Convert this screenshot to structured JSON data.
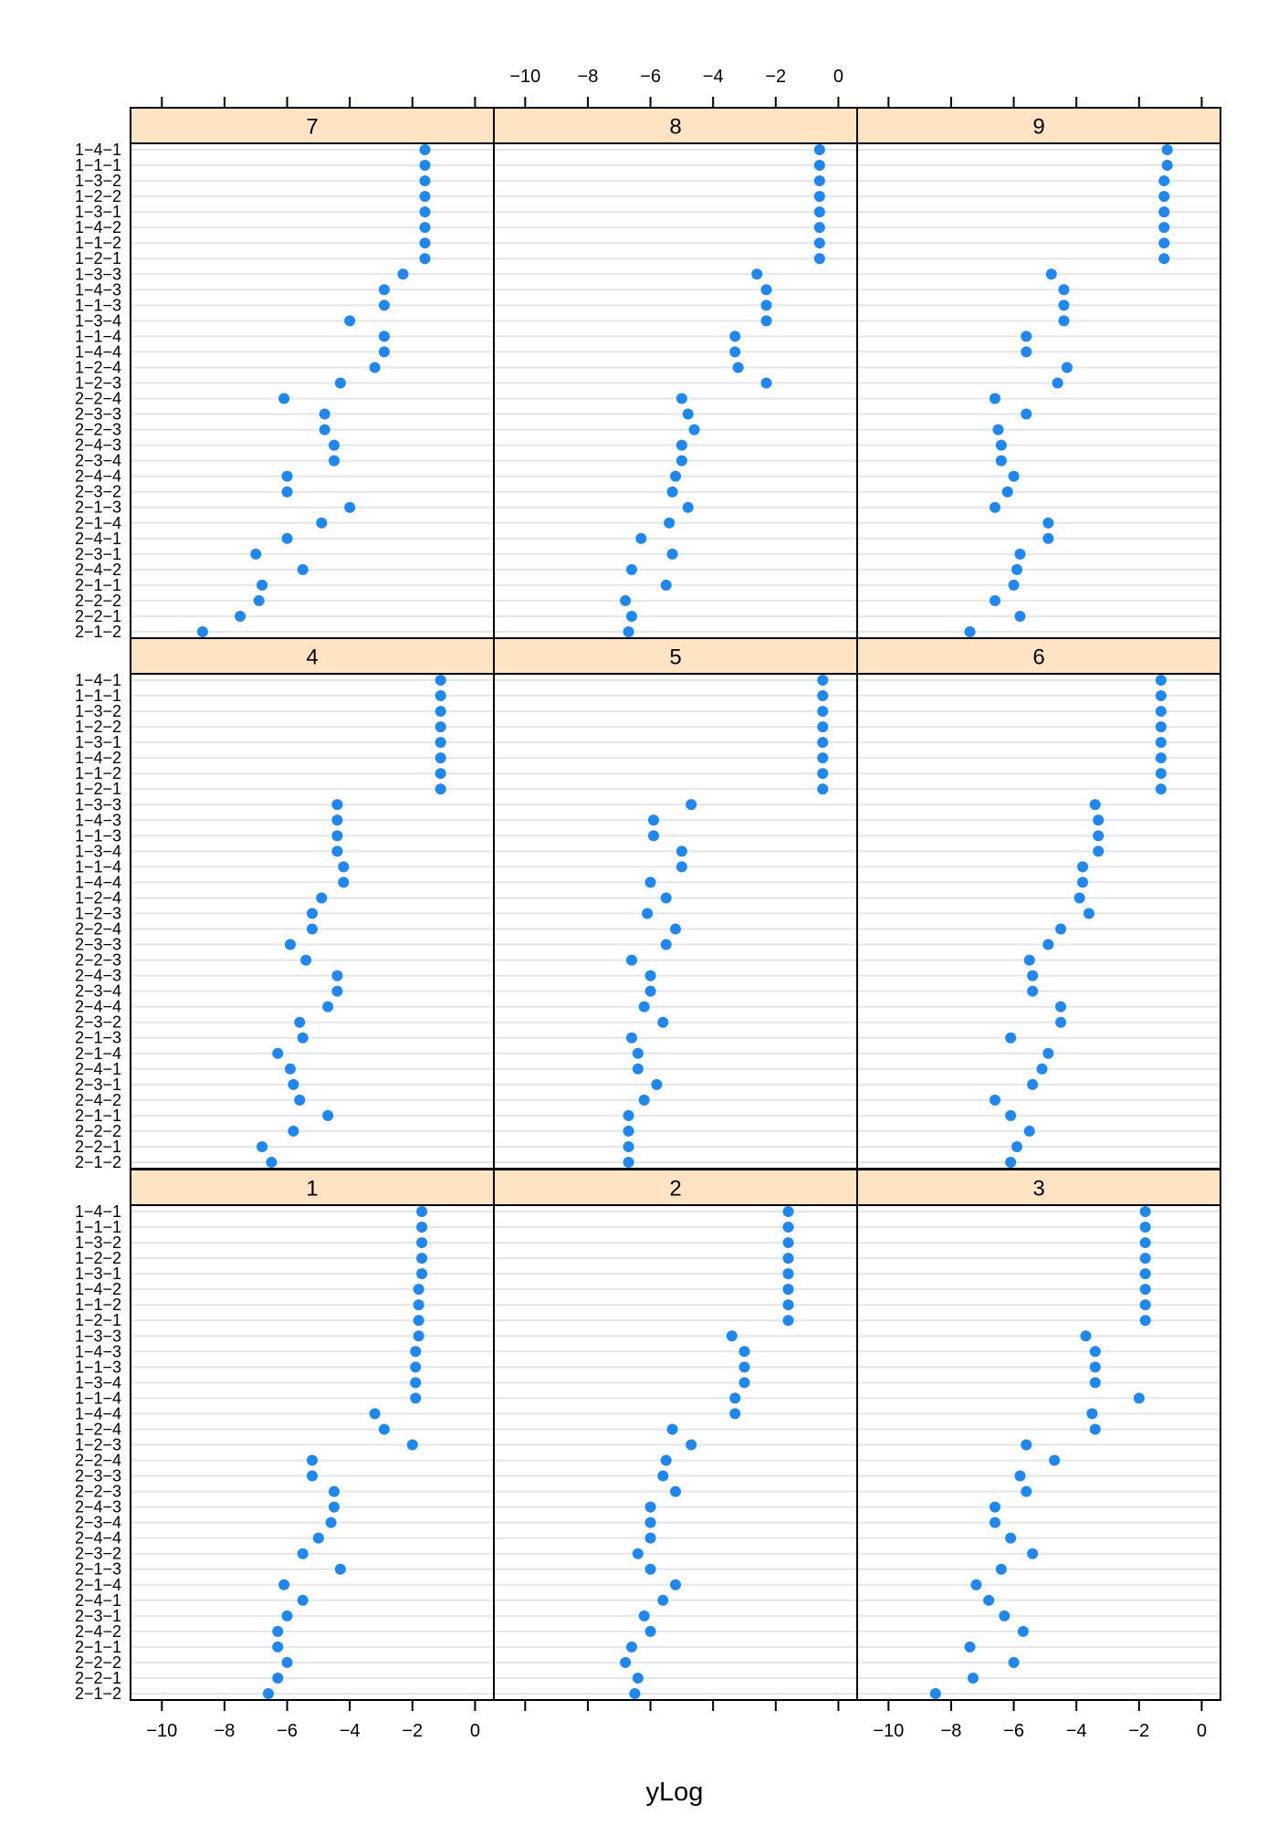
{
  "chart_data": {
    "type": "scatter",
    "xlabel": "yLog",
    "xlim": [
      -11,
      0.6
    ],
    "x_ticks": [
      -10,
      -8,
      -6,
      -4,
      -2,
      0
    ],
    "x_tick_labels": [
      "−10",
      "−8",
      "−6",
      "−4",
      "−2",
      "0"
    ],
    "row_labels": [
      "1−4−1",
      "1−1−1",
      "1−3−2",
      "1−2−2",
      "1−3−1",
      "1−4−2",
      "1−1−2",
      "1−2−1",
      "1−3−3",
      "1−4−3",
      "1−1−3",
      "1−3−4",
      "1−1−4",
      "1−4−4",
      "1−2−4",
      "1−2−3",
      "2−2−4",
      "2−3−3",
      "2−2−3",
      "2−4−3",
      "2−3−4",
      "2−4−4",
      "2−3−2",
      "2−1−3",
      "2−1−4",
      "2−4−1",
      "2−3−1",
      "2−4−2",
      "2−1−1",
      "2−2−2",
      "2−2−1",
      "2−1−2"
    ],
    "point_color": "#1e87f0",
    "strip_color": "#ffe4c4",
    "grid": true,
    "panels": [
      {
        "label": "7",
        "values": [
          -1.6,
          -1.6,
          -1.6,
          -1.6,
          -1.6,
          -1.6,
          -1.6,
          -1.6,
          -2.3,
          -2.9,
          -2.9,
          -4.0,
          -2.9,
          -2.9,
          -3.2,
          -4.3,
          -6.1,
          -4.8,
          -4.8,
          -4.5,
          -4.5,
          -6.0,
          -6.0,
          -4.0,
          -4.9,
          -6.0,
          -7.0,
          -5.5,
          -6.8,
          -6.9,
          -7.5,
          -8.7
        ]
      },
      {
        "label": "8",
        "values": [
          -0.6,
          -0.6,
          -0.6,
          -0.6,
          -0.6,
          -0.6,
          -0.6,
          -0.6,
          -2.6,
          -2.3,
          -2.3,
          -2.3,
          -3.3,
          -3.3,
          -3.2,
          -2.3,
          -5.0,
          -4.8,
          -4.6,
          -5.0,
          -5.0,
          -5.2,
          -5.3,
          -4.8,
          -5.4,
          -6.3,
          -5.3,
          -6.6,
          -5.5,
          -6.8,
          -6.6,
          -6.7
        ]
      },
      {
        "label": "9",
        "values": [
          -1.1,
          -1.1,
          -1.2,
          -1.2,
          -1.2,
          -1.2,
          -1.2,
          -1.2,
          -4.8,
          -4.4,
          -4.4,
          -4.4,
          -5.6,
          -5.6,
          -4.3,
          -4.6,
          -6.6,
          -5.6,
          -6.5,
          -6.4,
          -6.4,
          -6.0,
          -6.2,
          -6.6,
          -4.9,
          -4.9,
          -5.8,
          -5.9,
          -6.0,
          -6.6,
          -5.8,
          -7.4
        ]
      },
      {
        "label": "4",
        "values": [
          -1.1,
          -1.1,
          -1.1,
          -1.1,
          -1.1,
          -1.1,
          -1.1,
          -1.1,
          -4.4,
          -4.4,
          -4.4,
          -4.4,
          -4.2,
          -4.2,
          -4.9,
          -5.2,
          -5.2,
          -5.9,
          -5.4,
          -4.4,
          -4.4,
          -4.7,
          -5.6,
          -5.5,
          -6.3,
          -5.9,
          -5.8,
          -5.6,
          -4.7,
          -5.8,
          -6.8,
          -6.5
        ]
      },
      {
        "label": "5",
        "values": [
          -0.5,
          -0.5,
          -0.5,
          -0.5,
          -0.5,
          -0.5,
          -0.5,
          -0.5,
          -4.7,
          -5.9,
          -5.9,
          -5.0,
          -5.0,
          -6.0,
          -5.5,
          -6.1,
          -5.2,
          -5.5,
          -6.6,
          -6.0,
          -6.0,
          -6.2,
          -5.6,
          -6.6,
          -6.4,
          -6.4,
          -5.8,
          -6.2,
          -6.7,
          -6.7,
          -6.7,
          -6.7
        ]
      },
      {
        "label": "6",
        "values": [
          -1.3,
          -1.3,
          -1.3,
          -1.3,
          -1.3,
          -1.3,
          -1.3,
          -1.3,
          -3.4,
          -3.3,
          -3.3,
          -3.3,
          -3.8,
          -3.8,
          -3.9,
          -3.6,
          -4.5,
          -4.9,
          -5.5,
          -5.4,
          -5.4,
          -4.5,
          -4.5,
          -6.1,
          -4.9,
          -5.1,
          -5.4,
          -6.6,
          -6.1,
          -5.5,
          -5.9,
          -6.1
        ]
      },
      {
        "label": "1",
        "values": [
          -1.7,
          -1.7,
          -1.7,
          -1.7,
          -1.7,
          -1.8,
          -1.8,
          -1.8,
          -1.8,
          -1.9,
          -1.9,
          -1.9,
          -1.9,
          -3.2,
          -2.9,
          -2.0,
          -5.2,
          -5.2,
          -4.5,
          -4.5,
          -4.6,
          -5.0,
          -5.5,
          -4.3,
          -6.1,
          -5.5,
          -6.0,
          -6.3,
          -6.3,
          -6.0,
          -6.3,
          -6.6
        ]
      },
      {
        "label": "2",
        "values": [
          -1.6,
          -1.6,
          -1.6,
          -1.6,
          -1.6,
          -1.6,
          -1.6,
          -1.6,
          -3.4,
          -3.0,
          -3.0,
          -3.0,
          -3.3,
          -3.3,
          -5.3,
          -4.7,
          -5.5,
          -5.6,
          -5.2,
          -6.0,
          -6.0,
          -6.0,
          -6.4,
          -6.0,
          -5.2,
          -5.6,
          -6.2,
          -6.0,
          -6.6,
          -6.8,
          -6.4,
          -6.5
        ]
      },
      {
        "label": "3",
        "values": [
          -1.8,
          -1.8,
          -1.8,
          -1.8,
          -1.8,
          -1.8,
          -1.8,
          -1.8,
          -3.7,
          -3.4,
          -3.4,
          -3.4,
          -2.0,
          -3.5,
          -3.4,
          -5.6,
          -4.7,
          -5.8,
          -5.6,
          -6.6,
          -6.6,
          -6.1,
          -5.4,
          -6.4,
          -7.2,
          -6.8,
          -6.3,
          -5.7,
          -7.4,
          -6.0,
          -7.3,
          -8.5
        ]
      }
    ]
  }
}
